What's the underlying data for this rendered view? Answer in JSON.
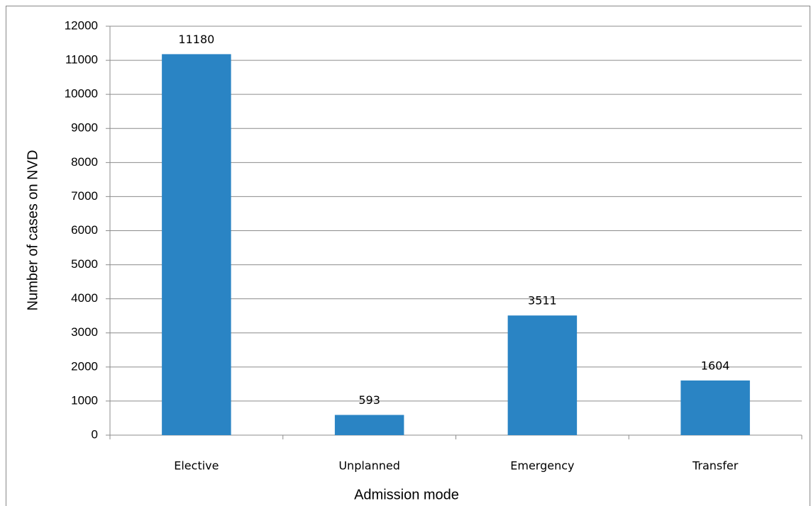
{
  "chart_data": {
    "type": "bar",
    "x_label": "Admission mode",
    "y_label": "Number of cases on NVD",
    "categories": [
      "Elective",
      "Unplanned",
      "Emergency",
      "Transfer"
    ],
    "values": [
      11180,
      593,
      3511,
      1604
    ],
    "color": "#2a84c4",
    "ylim": [
      0,
      12000
    ],
    "yticks": [
      0,
      1000,
      2000,
      3000,
      4000,
      5000,
      6000,
      7000,
      8000,
      9000,
      10000,
      11000,
      12000
    ],
    "grid": true,
    "data_labels": true
  }
}
